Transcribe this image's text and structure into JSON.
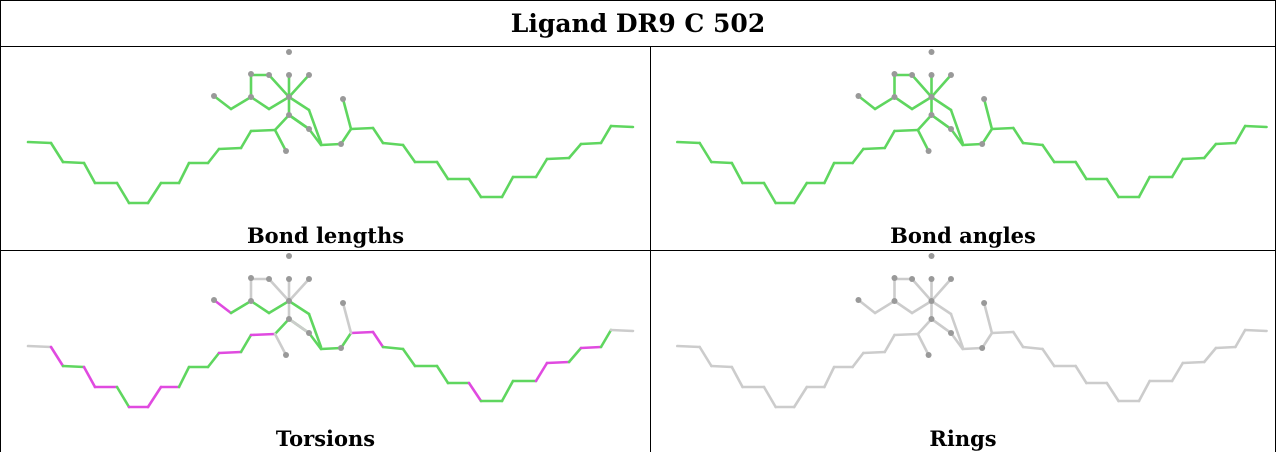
{
  "title": "Ligand DR9 C 502",
  "panels": [
    {
      "caption": "Bond lengths",
      "mode": "all_green"
    },
    {
      "caption": "Bond angles",
      "mode": "all_green"
    },
    {
      "caption": "Torsions",
      "mode": "torsions"
    },
    {
      "caption": "Rings",
      "mode": "all_gray"
    }
  ],
  "colors": {
    "green": "#5fd65f",
    "magenta": "#e04ae0",
    "gray_bond": "#cccccc",
    "atom": "#999999"
  }
}
